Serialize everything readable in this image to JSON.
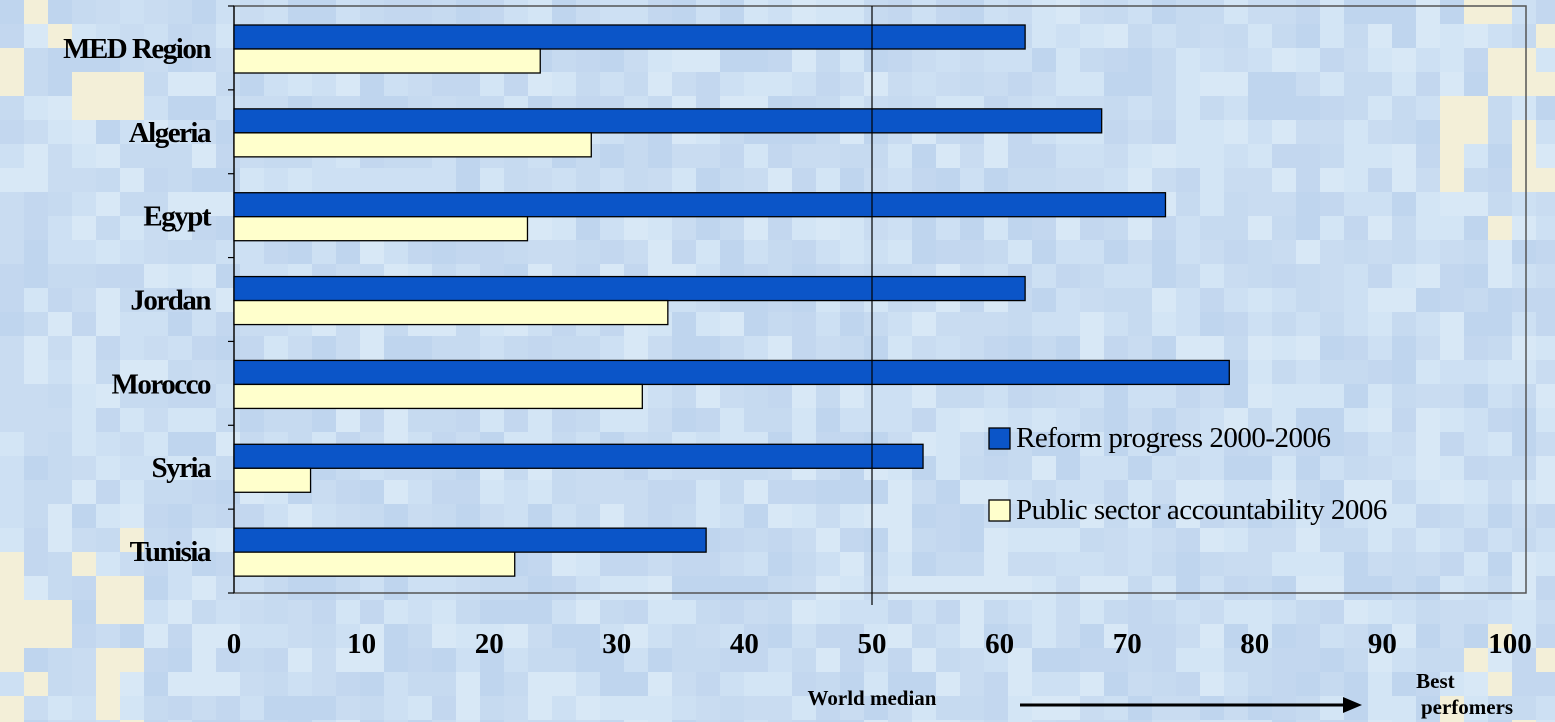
{
  "chart_data": {
    "type": "bar",
    "orientation": "horizontal",
    "categories": [
      "MED Region",
      "Algeria",
      "Egypt",
      "Jordan",
      "Morocco",
      "Syria",
      "Tunisia"
    ],
    "series": [
      {
        "name": "Reform progress 2000-2006",
        "values": [
          62,
          68,
          73,
          62,
          78,
          54,
          37
        ],
        "color": "#0b55c8"
      },
      {
        "name": "Public sector accountability 2006",
        "values": [
          24,
          28,
          23,
          34,
          32,
          6,
          22
        ],
        "color": "#ffffcc"
      }
    ],
    "xlim": [
      0,
      100
    ],
    "xticks": [
      0,
      10,
      20,
      30,
      40,
      50,
      60,
      70,
      80,
      90,
      100
    ],
    "reference_line": {
      "value": 50,
      "label": "World median"
    },
    "arrow_label": "Best perfomers",
    "arrow_label_lines": [
      "Best",
      "perfomers"
    ],
    "legend_position": "bottom-right-inside",
    "grid": false
  }
}
